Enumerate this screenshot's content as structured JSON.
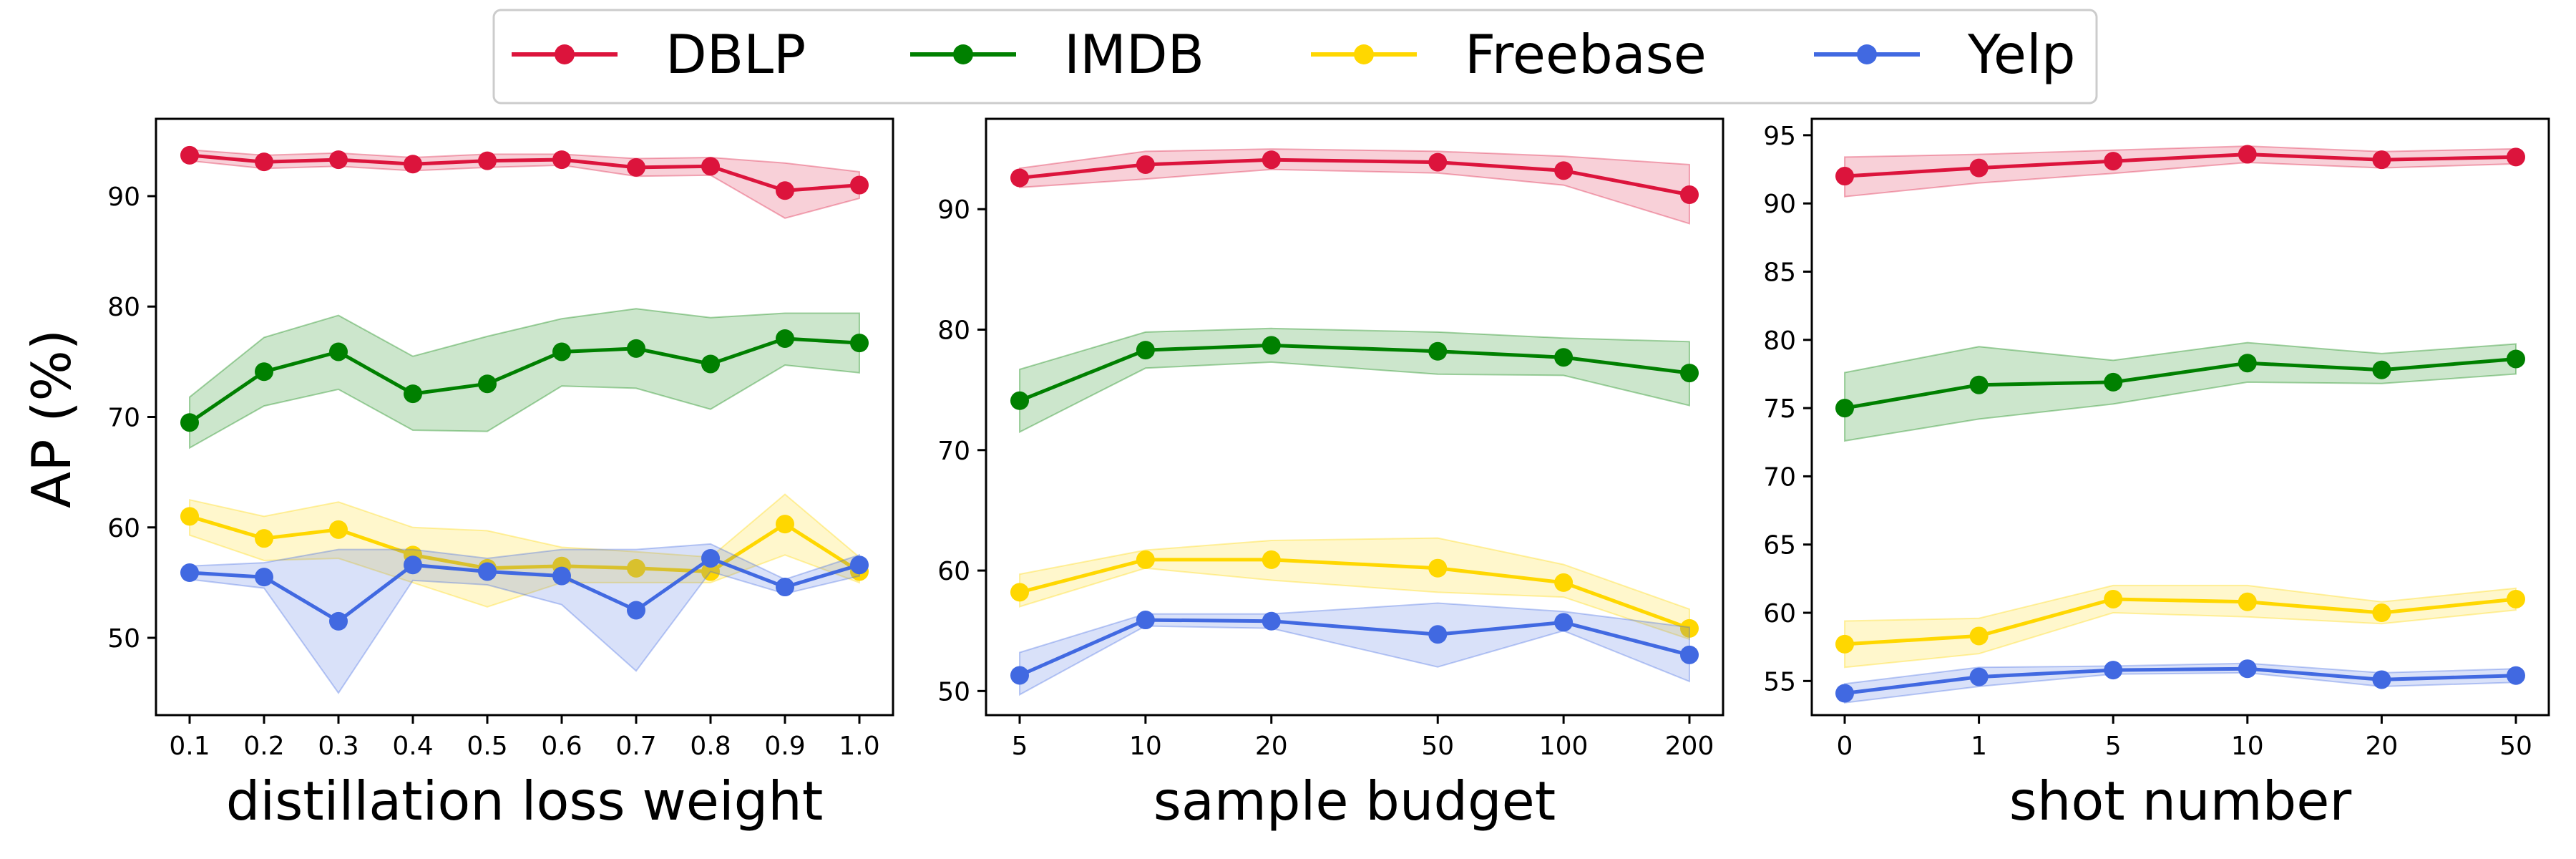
{
  "legend": [
    {
      "name": "DBLP",
      "color": "#DC143C"
    },
    {
      "name": "IMDB",
      "color": "#008000"
    },
    {
      "name": "Freebase",
      "color": "#FFD700"
    },
    {
      "name": "Yelp",
      "color": "#4169E1"
    }
  ],
  "chart_data": [
    {
      "type": "line",
      "title": "",
      "xlabel": "distillation loss weight",
      "ylabel": "AP (%)",
      "x": [
        0.1,
        0.2,
        0.3,
        0.4,
        0.5,
        0.6,
        0.7,
        0.8,
        0.9,
        1.0
      ],
      "x_tick_labels": [
        "0.1",
        "0.2",
        "0.3",
        "0.4",
        "0.5",
        "0.6",
        "0.7",
        "0.8",
        "0.9",
        "1.0"
      ],
      "x_scale": "linear",
      "ylim": [
        43,
        97
      ],
      "y_ticks": [
        50,
        60,
        70,
        80,
        90
      ],
      "series": [
        {
          "name": "DBLP",
          "color": "#DC143C",
          "values": [
            93.7,
            93.1,
            93.3,
            92.9,
            93.2,
            93.3,
            92.6,
            92.7,
            90.5,
            91.0
          ],
          "lower": [
            93.2,
            92.5,
            92.7,
            92.3,
            92.6,
            92.8,
            91.8,
            91.9,
            88.0,
            89.8
          ],
          "upper": [
            94.2,
            93.7,
            93.9,
            93.5,
            93.8,
            93.8,
            93.4,
            93.5,
            93.0,
            92.2
          ]
        },
        {
          "name": "IMDB",
          "color": "#008000",
          "values": [
            69.5,
            74.1,
            75.9,
            72.1,
            73.0,
            75.9,
            76.2,
            74.8,
            77.1,
            76.7
          ],
          "lower": [
            67.2,
            71.0,
            72.5,
            68.8,
            68.7,
            72.8,
            72.6,
            70.7,
            74.7,
            74.0
          ],
          "upper": [
            71.8,
            77.2,
            79.2,
            75.5,
            77.3,
            78.9,
            79.8,
            79.0,
            79.4,
            79.4
          ]
        },
        {
          "name": "Freebase",
          "color": "#FFD700",
          "values": [
            61.0,
            59.0,
            59.8,
            57.5,
            56.3,
            56.5,
            56.3,
            56.0,
            60.3,
            56.0
          ],
          "lower": [
            59.3,
            57.0,
            57.2,
            55.0,
            52.8,
            55.0,
            55.0,
            55.0,
            57.5,
            55.0
          ],
          "upper": [
            62.5,
            61.0,
            62.3,
            60.0,
            59.7,
            58.2,
            57.8,
            57.3,
            63.0,
            57.3
          ]
        },
        {
          "name": "Yelp",
          "color": "#4169E1",
          "values": [
            55.9,
            55.5,
            51.5,
            56.6,
            56.0,
            55.6,
            52.5,
            57.2,
            54.6,
            56.6
          ],
          "lower": [
            55.3,
            54.5,
            45.0,
            55.2,
            54.8,
            53.0,
            47.0,
            56.0,
            54.0,
            55.6
          ],
          "upper": [
            56.5,
            56.8,
            58.0,
            58.0,
            57.2,
            58.0,
            58.0,
            58.5,
            55.3,
            57.5
          ]
        }
      ]
    },
    {
      "type": "line",
      "title": "",
      "xlabel": "sample budget",
      "ylabel": "",
      "x": [
        5,
        10,
        20,
        50,
        100,
        200
      ],
      "x_tick_labels": [
        "5",
        "10",
        "20",
        "50",
        "100",
        "200"
      ],
      "x_scale": "log",
      "ylim": [
        48,
        97.5
      ],
      "y_ticks": [
        50,
        60,
        70,
        80,
        90
      ],
      "series": [
        {
          "name": "DBLP",
          "color": "#DC143C",
          "values": [
            92.6,
            93.7,
            94.1,
            93.9,
            93.2,
            91.2
          ],
          "lower": [
            91.8,
            92.5,
            93.3,
            93.0,
            92.0,
            88.8
          ],
          "upper": [
            93.4,
            94.8,
            95.0,
            94.8,
            94.4,
            93.7
          ]
        },
        {
          "name": "IMDB",
          "color": "#008000",
          "values": [
            74.1,
            78.3,
            78.7,
            78.2,
            77.7,
            76.4
          ],
          "lower": [
            71.5,
            76.8,
            77.3,
            76.3,
            76.2,
            73.7
          ],
          "upper": [
            76.7,
            79.8,
            80.1,
            79.8,
            79.3,
            79.0
          ]
        },
        {
          "name": "Freebase",
          "color": "#FFD700",
          "values": [
            58.2,
            60.9,
            60.9,
            60.2,
            59.0,
            55.2
          ],
          "lower": [
            57.0,
            60.2,
            59.2,
            58.2,
            57.8,
            54.3
          ],
          "upper": [
            59.7,
            61.7,
            62.5,
            62.7,
            60.5,
            56.8
          ]
        },
        {
          "name": "Yelp",
          "color": "#4169E1",
          "values": [
            51.3,
            55.9,
            55.8,
            54.7,
            55.7,
            53.0
          ],
          "lower": [
            49.7,
            55.4,
            55.2,
            52.0,
            55.0,
            50.8
          ],
          "upper": [
            53.2,
            56.4,
            56.4,
            57.3,
            56.6,
            55.3
          ]
        }
      ]
    },
    {
      "type": "line",
      "title": "",
      "xlabel": "shot number",
      "ylabel": "",
      "x": [
        0,
        1,
        5,
        10,
        20,
        50
      ],
      "x_tick_labels": [
        "0",
        "1",
        "5",
        "10",
        "20",
        "50"
      ],
      "x_scale": "categorical",
      "ylim": [
        52.5,
        96.2
      ],
      "y_ticks": [
        55,
        60,
        65,
        70,
        75,
        80,
        85,
        90,
        95
      ],
      "series": [
        {
          "name": "DBLP",
          "color": "#DC143C",
          "values": [
            92.0,
            92.6,
            93.1,
            93.6,
            93.2,
            93.4
          ],
          "lower": [
            90.5,
            91.5,
            92.2,
            93.0,
            92.6,
            92.9
          ],
          "upper": [
            93.4,
            93.6,
            93.9,
            94.2,
            93.8,
            94.0
          ]
        },
        {
          "name": "IMDB",
          "color": "#008000",
          "values": [
            75.0,
            76.7,
            76.9,
            78.3,
            77.8,
            78.6
          ],
          "lower": [
            72.6,
            74.2,
            75.3,
            76.9,
            76.8,
            77.5
          ],
          "upper": [
            77.6,
            79.5,
            78.5,
            79.8,
            79.0,
            79.7
          ]
        },
        {
          "name": "Freebase",
          "color": "#FFD700",
          "values": [
            57.7,
            58.3,
            61.0,
            60.8,
            60.0,
            61.0
          ],
          "lower": [
            56.0,
            57.0,
            60.0,
            59.7,
            59.2,
            60.2
          ],
          "upper": [
            59.4,
            59.6,
            62.0,
            62.0,
            60.8,
            61.8
          ]
        },
        {
          "name": "Yelp",
          "color": "#4169E1",
          "values": [
            54.1,
            55.3,
            55.8,
            55.9,
            55.1,
            55.4
          ],
          "lower": [
            53.4,
            54.6,
            55.5,
            55.6,
            54.6,
            54.9
          ],
          "upper": [
            54.8,
            56.0,
            56.1,
            56.3,
            55.6,
            55.9
          ]
        }
      ]
    }
  ]
}
